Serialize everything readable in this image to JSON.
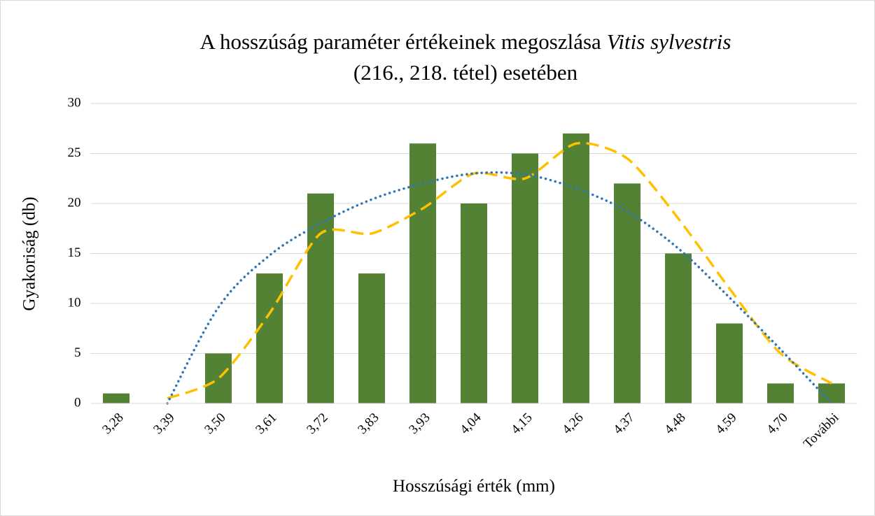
{
  "chart_data": {
    "type": "bar",
    "title": [
      "A hosszúság paraméter értékeinek megoszlása",
      "Vitis sylvestris",
      "(216., 218. tétel) esetében"
    ],
    "x_label": "Hosszúsági érték (mm)",
    "y_label": "Gyakoriság (db)",
    "categories": [
      "3,28",
      "3,39",
      "3,50",
      "3,61",
      "3,72",
      "3,83",
      "3,93",
      "4,04",
      "4,15",
      "4,26",
      "4,37",
      "4,48",
      "4,59",
      "4,70",
      "További"
    ],
    "values": [
      1,
      0,
      5,
      13,
      21,
      13,
      26,
      20,
      25,
      27,
      22,
      15,
      8,
      2,
      2
    ],
    "color": "#548235",
    "trendlines": [
      {
        "kind": "moving-average",
        "color": "#ffc000",
        "style": "dashed",
        "values": [
          null,
          0.5,
          2.5,
          9,
          17,
          17,
          19.5,
          23,
          22.5,
          26,
          24.5,
          18.5,
          11.5,
          5,
          2
        ]
      },
      {
        "kind": "polynomial",
        "color": "#2e75b6",
        "style": "dotted",
        "values": [
          null,
          0,
          9.6,
          14.8,
          18,
          20.4,
          22,
          23,
          22.9,
          21.5,
          19.2,
          15.5,
          10.6,
          5.4,
          0
        ]
      }
    ],
    "ylim": [
      0,
      30
    ],
    "yticks": [
      0,
      5,
      10,
      15,
      20,
      25,
      30
    ],
    "grid": true
  }
}
